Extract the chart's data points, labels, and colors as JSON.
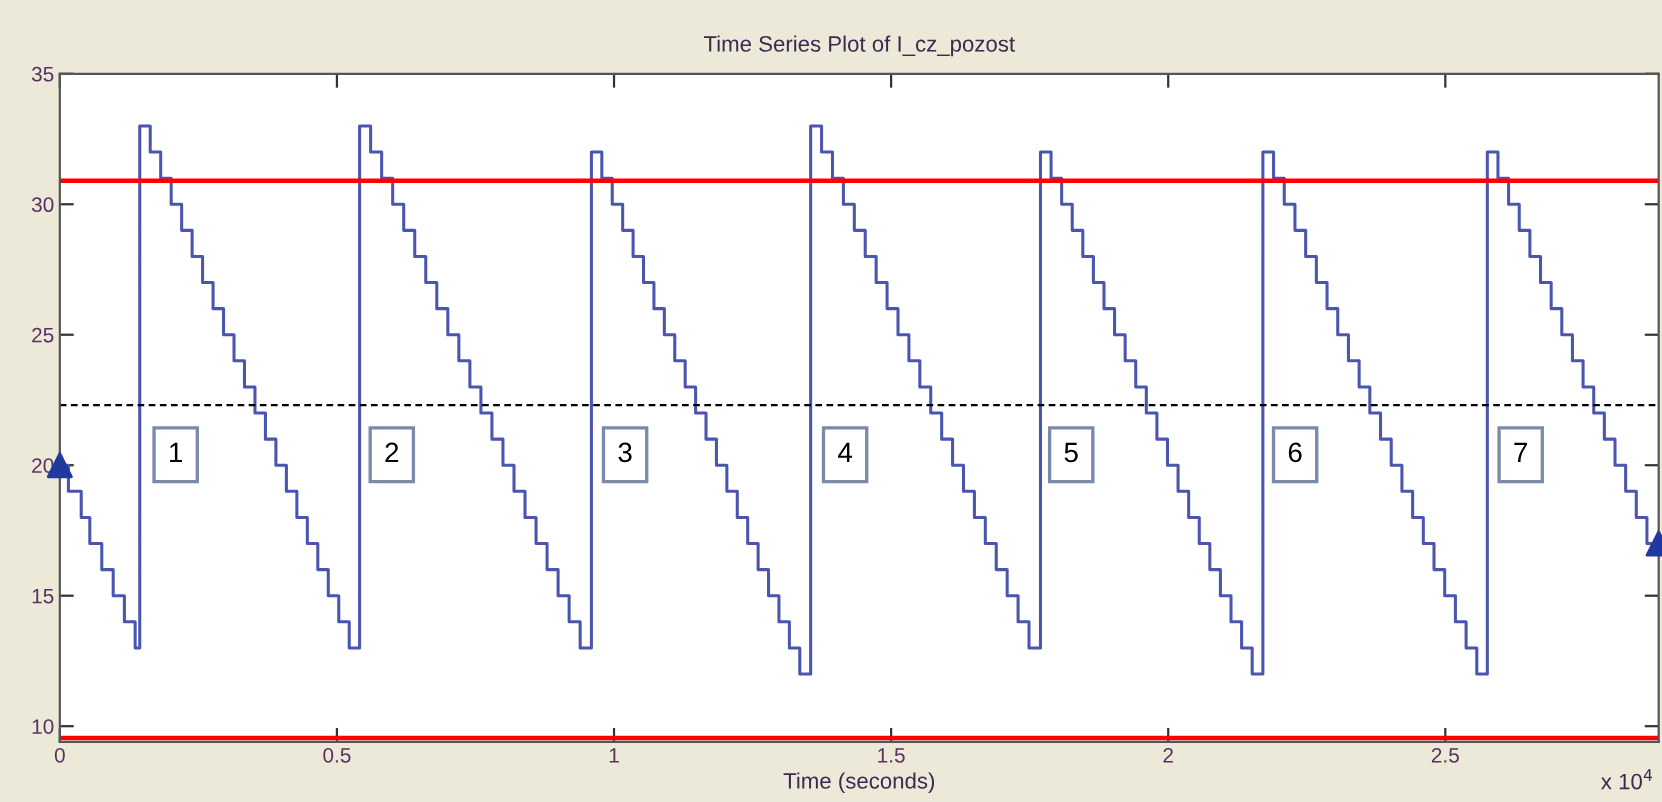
{
  "chart_data": {
    "type": "step",
    "title": "Time Series Plot of I_cz_pozost",
    "xlabel": "Time (seconds)",
    "xlim": [
      0,
      2.885
    ],
    "ylim": [
      9.4,
      35
    ],
    "xticks": [
      0,
      0.5,
      1,
      1.5,
      2,
      2.5
    ],
    "yticks": [
      10,
      15,
      20,
      25,
      30,
      35
    ],
    "grid": false,
    "legend": false,
    "series": [
      {
        "color": "#4a55b0",
        "marker": "none",
        "x": [
          0,
          0.0155,
          0.0386,
          0.0541,
          0.0757,
          0.0963,
          0.1165,
          0.1359,
          0.1442,
          0.1631,
          0.182,
          0.2009,
          0.2198,
          0.2387,
          0.2576,
          0.2765,
          0.2954,
          0.3143,
          0.3332,
          0.3521,
          0.371,
          0.3899,
          0.4088,
          0.4277,
          0.4466,
          0.4655,
          0.4844,
          0.5033,
          0.5222,
          0.5409,
          0.5608,
          0.5807,
          0.6006,
          0.6205,
          0.6404,
          0.6603,
          0.6802,
          0.7001,
          0.72,
          0.7399,
          0.7598,
          0.7797,
          0.7996,
          0.8195,
          0.8394,
          0.8593,
          0.8792,
          0.8991,
          0.919,
          0.9389,
          0.9592,
          0.978,
          0.9968,
          1.0156,
          1.0344,
          1.0532,
          1.072,
          1.0908,
          1.1096,
          1.1284,
          1.1472,
          1.166,
          1.1848,
          1.2036,
          1.2224,
          1.2412,
          1.26,
          1.2788,
          1.2976,
          1.3164,
          1.3352,
          1.3548,
          1.3745,
          1.3942,
          1.4139,
          1.4336,
          1.4533,
          1.473,
          1.4927,
          1.5124,
          1.5321,
          1.5518,
          1.5715,
          1.5912,
          1.6109,
          1.6306,
          1.6503,
          1.67,
          1.6897,
          1.7094,
          1.7291,
          1.7488,
          1.7695,
          1.7886,
          1.8077,
          1.8268,
          1.8459,
          1.865,
          1.8841,
          1.9032,
          1.9223,
          1.9414,
          1.9605,
          1.9796,
          1.9987,
          2.0178,
          2.0369,
          2.056,
          2.0751,
          2.0942,
          2.1133,
          2.1324,
          2.1515,
          2.1708,
          2.1901,
          2.2094,
          2.2287,
          2.248,
          2.2673,
          2.2866,
          2.3059,
          2.3252,
          2.3445,
          2.3638,
          2.3831,
          2.4024,
          2.4217,
          2.441,
          2.4603,
          2.4796,
          2.4989,
          2.5182,
          2.5375,
          2.5568,
          2.5758,
          2.595,
          2.6142,
          2.6334,
          2.6526,
          2.6718,
          2.691,
          2.7102,
          2.7294,
          2.7486,
          2.7678,
          2.787,
          2.8062,
          2.8254,
          2.8446,
          2.8638,
          2.885
        ],
        "values": [
          20,
          19,
          18,
          17,
          16,
          15,
          14,
          13,
          33,
          32,
          31,
          30,
          29,
          28,
          27,
          26,
          25,
          24,
          23,
          22,
          21,
          20,
          19,
          18,
          17,
          16,
          15,
          14,
          13,
          33,
          32,
          31,
          30,
          29,
          28,
          27,
          26,
          25,
          24,
          23,
          22,
          21,
          20,
          19,
          18,
          17,
          16,
          15,
          14,
          13,
          32,
          31,
          30,
          29,
          28,
          27,
          26,
          25,
          24,
          23,
          22,
          21,
          20,
          19,
          18,
          17,
          16,
          15,
          14,
          13,
          12,
          33,
          32,
          31,
          30,
          29,
          28,
          27,
          26,
          25,
          24,
          23,
          22,
          21,
          20,
          19,
          18,
          17,
          16,
          15,
          14,
          13,
          32,
          31,
          30,
          29,
          28,
          27,
          26,
          25,
          24,
          23,
          22,
          21,
          20,
          19,
          18,
          17,
          16,
          15,
          14,
          13,
          12,
          32,
          31,
          30,
          29,
          28,
          27,
          26,
          25,
          24,
          23,
          22,
          21,
          20,
          19,
          18,
          17,
          16,
          15,
          14,
          13,
          12,
          32,
          31,
          30,
          29,
          28,
          27,
          26,
          25,
          24,
          23,
          22,
          21,
          20,
          19,
          18,
          17,
          17
        ]
      },
      {
        "type": "scatter",
        "color": "#1f3a9e",
        "marker": "triangle",
        "x": [
          0,
          2.885
        ],
        "values": [
          20,
          17
        ]
      }
    ],
    "ref_lines": [
      {
        "axis": "y",
        "value": 30.9,
        "color": "#ff0000",
        "line_style": "solid"
      },
      {
        "axis": "y",
        "value": 22.3,
        "color": "#000000",
        "line_style": "dashed"
      },
      {
        "axis": "y",
        "value": 9.55,
        "color": "#ff0000",
        "line_style": "solid"
      }
    ],
    "annotations": [
      {
        "text": "1",
        "x": 0.209,
        "y": 20.4
      },
      {
        "text": "2",
        "x": 0.599,
        "y": 20.4
      },
      {
        "text": "3",
        "x": 1.02,
        "y": 20.4
      },
      {
        "text": "4",
        "x": 1.417,
        "y": 20.4
      },
      {
        "text": "5",
        "x": 1.825,
        "y": 20.4
      },
      {
        "text": "6",
        "x": 2.229,
        "y": 20.4
      },
      {
        "text": "7",
        "x": 2.636,
        "y": 20.4
      },
      "x 10$^{4}$"
    ]
  }
}
